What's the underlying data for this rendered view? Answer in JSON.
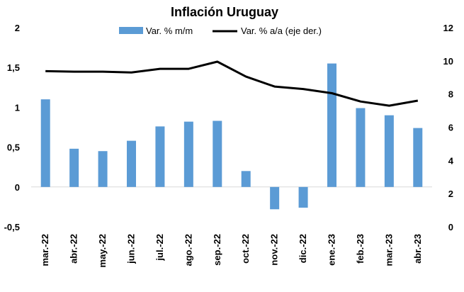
{
  "chart_data": {
    "type": "bar+line",
    "title": "Inflación Uruguay",
    "categories": [
      "mar.-22",
      "abr.-22",
      "may.-22",
      "jun.-22",
      "jul.-22",
      "ago.-22",
      "sep.-22",
      "oct.-22",
      "nov.-22",
      "dic.-22",
      "ene.-23",
      "feb.-23",
      "mar.-23",
      "abr.-23"
    ],
    "series": [
      {
        "name": "Var. % m/m",
        "type": "bar",
        "axis": "left",
        "color": "#5b9bd5",
        "values": [
          1.1,
          0.48,
          0.45,
          0.58,
          0.76,
          0.82,
          0.83,
          0.2,
          -0.28,
          -0.26,
          1.55,
          0.99,
          0.9,
          0.74
        ]
      },
      {
        "name": "Var. % a/a (eje der.)",
        "type": "line",
        "axis": "right",
        "color": "#000000",
        "values": [
          9.38,
          9.35,
          9.35,
          9.3,
          9.52,
          9.52,
          9.95,
          9.05,
          8.45,
          8.3,
          8.05,
          7.55,
          7.3,
          7.6
        ]
      }
    ],
    "y_left": {
      "min": -0.5,
      "max": 2,
      "ticks": [
        "-0,5",
        "0",
        "0,5",
        "1",
        "1,5",
        "2"
      ],
      "tick_values": [
        -0.5,
        0,
        0.5,
        1,
        1.5,
        2
      ]
    },
    "y_right": {
      "min": 0,
      "max": 12,
      "ticks": [
        "0",
        "2",
        "4",
        "6",
        "8",
        "10",
        "12"
      ],
      "tick_values": [
        0,
        2,
        4,
        6,
        8,
        10,
        12
      ]
    },
    "grid": false,
    "legend": "top-center"
  }
}
